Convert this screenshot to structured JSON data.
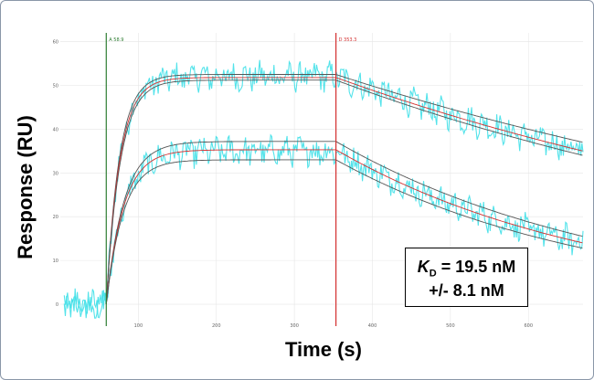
{
  "chart_data": {
    "type": "line",
    "title": "",
    "xlabel": "Time (s)",
    "ylabel": "Response (RU)",
    "xlim": [
      0,
      670
    ],
    "ylim": [
      -5,
      62
    ],
    "x_ticks": [
      100,
      200,
      300,
      400,
      500,
      600
    ],
    "y_ticks": [
      0,
      10,
      20,
      30,
      40,
      50,
      60
    ],
    "grid": true,
    "association_start": 58.9,
    "dissociation_start": 353.3,
    "markers": [
      {
        "label": "A 58.9",
        "x": 58.9,
        "color": "#2e7d32"
      },
      {
        "label": "D 353.3",
        "x": 353.3,
        "color": "#d32f2f"
      }
    ],
    "series": [
      {
        "kind": "measured",
        "color": "#40e0e8",
        "baseline": 0,
        "plateau": 52,
        "ka": 0.058,
        "dissociation_end": 35,
        "kd": 0.00135
      },
      {
        "kind": "measured",
        "color": "#40e0e8",
        "baseline": 0,
        "plateau": 35,
        "ka": 0.045,
        "dissociation_end": 14,
        "kd": 0.0031
      }
    ],
    "fit_curves": [
      {
        "color": "#555555",
        "plateau": 52.5,
        "ka": 0.06,
        "dissociation_end": 37,
        "kd": 0.0013
      },
      {
        "color": "#d32f2f",
        "plateau": 51.8,
        "ka": 0.058,
        "dissociation_end": 35,
        "kd": 0.00135
      },
      {
        "color": "#555555",
        "plateau": 51.2,
        "ka": 0.056,
        "dissociation_end": 34,
        "kd": 0.0014
      },
      {
        "color": "#555555",
        "plateau": 37.2,
        "ka": 0.044,
        "dissociation_end": 15.5,
        "kd": 0.003
      },
      {
        "color": "#d32f2f",
        "plateau": 35.3,
        "ka": 0.045,
        "dissociation_end": 14,
        "kd": 0.0031
      },
      {
        "color": "#555555",
        "plateau": 33.0,
        "ka": 0.046,
        "dissociation_end": 12.8,
        "kd": 0.0032
      }
    ],
    "annotation": {
      "kd_symbol": "K",
      "kd_subscript": "D",
      "kd_value": "= 19.5 nM",
      "kd_error": "+/- 8.1 nM"
    }
  }
}
